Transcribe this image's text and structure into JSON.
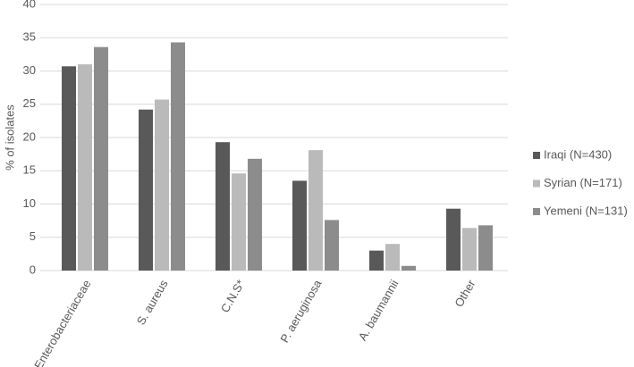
{
  "chart_data": {
    "type": "bar",
    "y_label": "% of isolates",
    "categories": [
      "Enterobacteriaceae",
      "S. aureus",
      "C.N.S*",
      "P. aeruginosa",
      "A. baumannii",
      "Other"
    ],
    "series": [
      {
        "name": "Iraqi (N=430)",
        "color": "#595959",
        "values": [
          30.7,
          24.2,
          19.3,
          13.5,
          3.0,
          9.3
        ]
      },
      {
        "name": "Syrian (N=171)",
        "color": "#bababa",
        "values": [
          31.0,
          25.7,
          14.6,
          18.1,
          4.0,
          6.4
        ]
      },
      {
        "name": "Yemeni (N=131)",
        "color": "#8c8c8c",
        "values": [
          33.6,
          34.3,
          16.8,
          7.6,
          0.7,
          6.8
        ]
      }
    ],
    "ylim": [
      0,
      40
    ],
    "yticks": [
      0,
      5,
      10,
      15,
      20,
      25,
      30,
      35,
      40
    ],
    "grid": true,
    "legend": "right"
  }
}
